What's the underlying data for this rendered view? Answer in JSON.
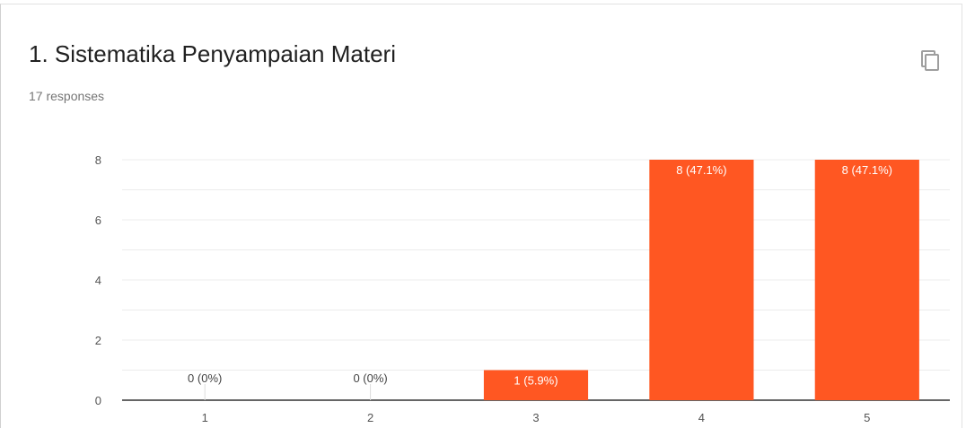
{
  "header": {
    "title": "1. Sistematika Penyampaian Materi",
    "responses": "17 responses"
  },
  "icons": {
    "copy": "copy-icon"
  },
  "colors": {
    "bar": "#ff5722",
    "bar_label_inside": "#ffffff",
    "bar_label_outside": "#444444",
    "grid": "#ececec",
    "axis": "#333333"
  },
  "chart_data": {
    "type": "bar",
    "categories": [
      "1",
      "2",
      "3",
      "4",
      "5"
    ],
    "values": [
      0,
      0,
      1,
      8,
      8
    ],
    "data_labels": [
      "0 (0%)",
      "0 (0%)",
      "1 (5.9%)",
      "8 (47.1%)",
      "8 (47.1%)"
    ],
    "ylim": [
      0,
      8
    ],
    "yticks": [
      0,
      2,
      4,
      6,
      8
    ],
    "grid": true,
    "title": "",
    "xlabel": "",
    "ylabel": ""
  }
}
